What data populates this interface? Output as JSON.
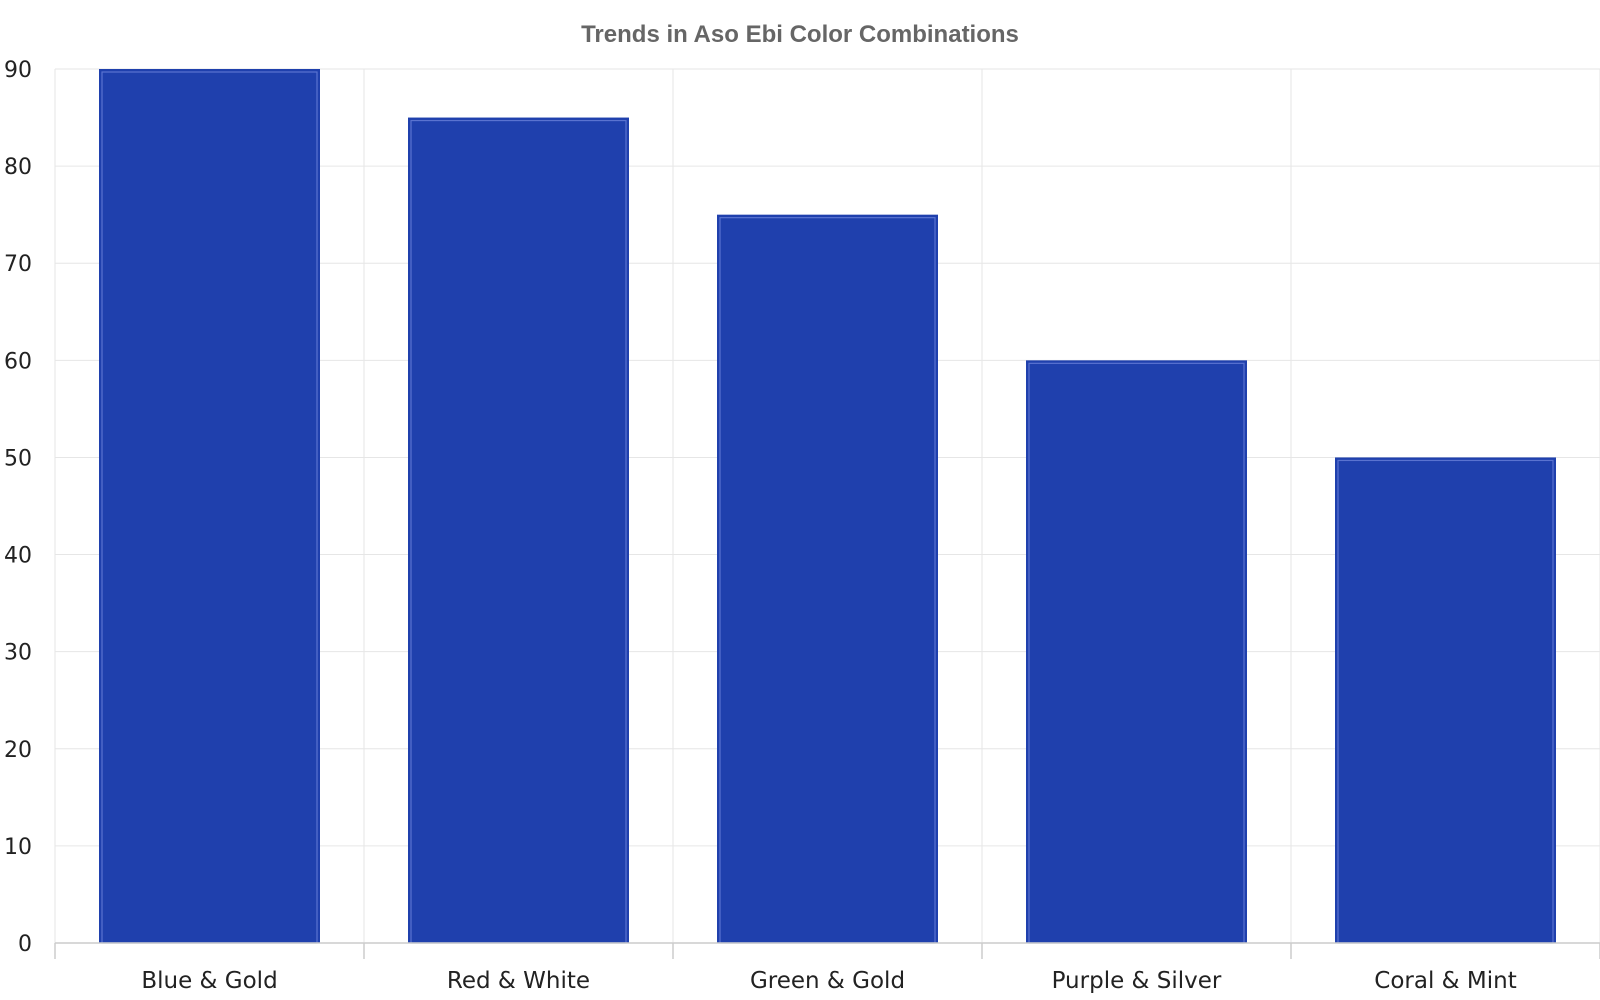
{
  "chart_data": {
    "type": "bar",
    "title": "Trends in Aso Ebi Color Combinations",
    "xlabel": "",
    "ylabel": "",
    "categories": [
      "Blue & Gold",
      "Red & White",
      "Green & Gold",
      "Purple & Silver",
      "Coral & Mint"
    ],
    "values": [
      90,
      85,
      75,
      60,
      50
    ],
    "ylim": [
      0,
      90
    ],
    "yticks": [
      0,
      10,
      20,
      30,
      40,
      50,
      60,
      70,
      80,
      90
    ],
    "grid": true,
    "legend": "none",
    "colors": {
      "bar": "#1f40ad",
      "bar_inner_border": "#5a73d0",
      "title": "#666666",
      "grid": "#e6e6e6"
    }
  }
}
